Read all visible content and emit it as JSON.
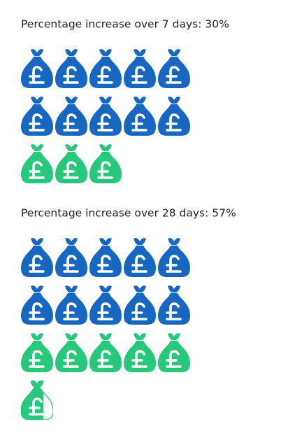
{
  "chart_data": {
    "type": "pictograph",
    "unit": 10,
    "per_row": 5,
    "base_color": "#1767c0",
    "color": "#27c77c",
    "charts": [
      {
        "title": "Percentage increase over 7 days: 30%",
        "base": 100,
        "value": 30
      },
      {
        "title": "Percentage increase over 28 days: 57%",
        "base": 100,
        "value": 57
      }
    ]
  }
}
